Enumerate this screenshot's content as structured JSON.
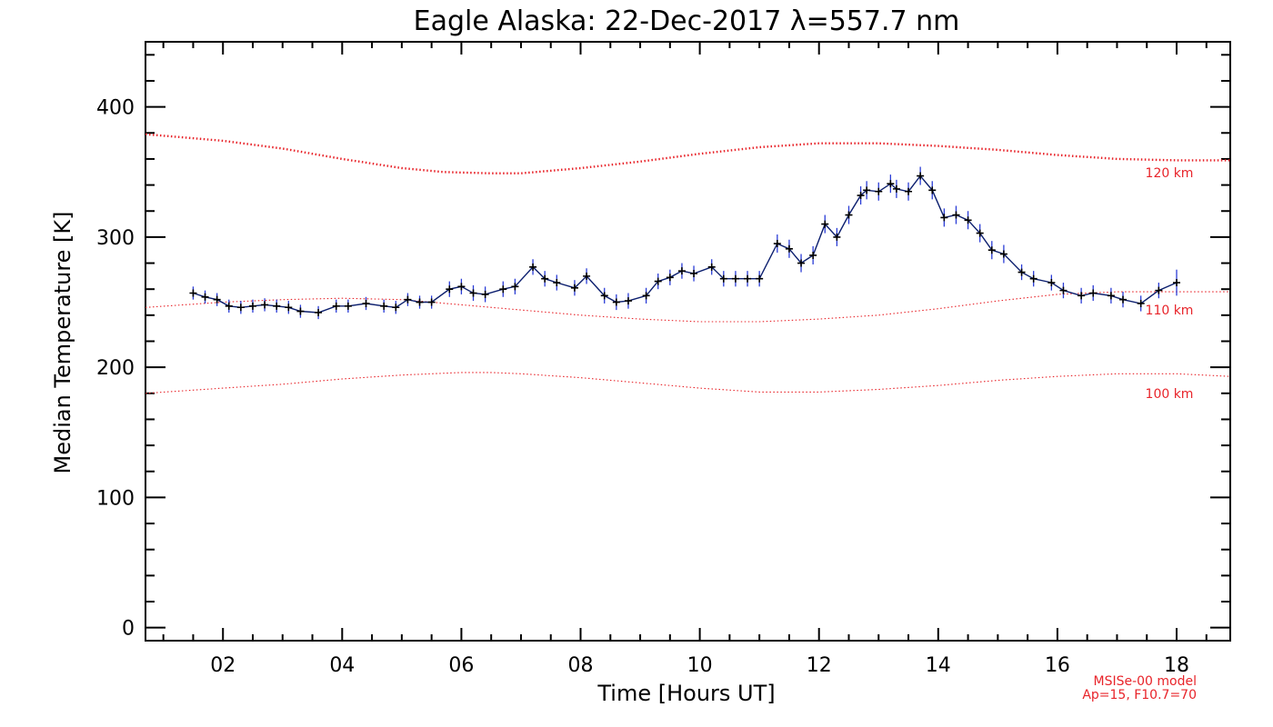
{
  "chart_data": {
    "type": "line",
    "title": "Eagle Alaska: 22-Dec-2017 λ=557.7 nm",
    "xlabel": "Time [Hours UT]",
    "ylabel": "Median Temperature [K]",
    "xlim": [
      0.7,
      18.9
    ],
    "ylim": [
      -10,
      450
    ],
    "xticks": [
      2,
      4,
      6,
      8,
      10,
      12,
      14,
      16,
      18
    ],
    "xtick_labels": [
      "02",
      "04",
      "06",
      "08",
      "10",
      "12",
      "14",
      "16",
      "18"
    ],
    "yticks": [
      0,
      100,
      200,
      300,
      400
    ],
    "ytick_labels": [
      "0",
      "100",
      "200",
      "300",
      "400"
    ],
    "grid": false,
    "model_note": [
      "MSISe-00 model",
      "Ap=15, F10.7=70"
    ],
    "series": [
      {
        "kind": "measured",
        "color": "#0b1e6e",
        "x": [
          1.5,
          1.7,
          1.9,
          2.1,
          2.3,
          2.5,
          2.7,
          2.9,
          3.1,
          3.3,
          3.6,
          3.9,
          4.1,
          4.4,
          4.7,
          4.9,
          5.1,
          5.3,
          5.5,
          5.8,
          6.0,
          6.2,
          6.4,
          6.7,
          6.9,
          7.2,
          7.4,
          7.6,
          7.9,
          8.1,
          8.4,
          8.6,
          8.8,
          9.1,
          9.3,
          9.5,
          9.7,
          9.9,
          10.2,
          10.4,
          10.6,
          10.8,
          11.0,
          11.3,
          11.5,
          11.7,
          11.9,
          12.1,
          12.3,
          12.5,
          12.7,
          12.8,
          13.0,
          13.2,
          13.3,
          13.5,
          13.7,
          13.9,
          14.1,
          14.3,
          14.5,
          14.7,
          14.9,
          15.1,
          15.4,
          15.6,
          15.9,
          16.1,
          16.4,
          16.6,
          16.9,
          17.1,
          17.4,
          17.7,
          18.0
        ],
        "y": [
          257,
          254,
          252,
          247,
          246,
          247,
          248,
          247,
          246,
          243,
          242,
          247,
          247,
          249,
          247,
          246,
          252,
          250,
          250,
          260,
          262,
          257,
          256,
          260,
          262,
          277,
          268,
          265,
          261,
          270,
          255,
          250,
          251,
          255,
          266,
          269,
          274,
          272,
          277,
          268,
          268,
          268,
          268,
          295,
          291,
          280,
          286,
          310,
          300,
          317,
          332,
          336,
          335,
          341,
          337,
          335,
          347,
          336,
          315,
          317,
          313,
          303,
          290,
          287,
          273,
          268,
          265,
          259,
          255,
          257,
          255,
          252,
          249,
          259,
          265
        ],
        "error": [
          5,
          5,
          5,
          5,
          5,
          5,
          5,
          5,
          5,
          5,
          5,
          5,
          5,
          5,
          5,
          5,
          5,
          5,
          5,
          6,
          6,
          6,
          6,
          6,
          6,
          6,
          6,
          6,
          6,
          6,
          6,
          6,
          6,
          6,
          6,
          6,
          6,
          6,
          6,
          6,
          6,
          6,
          6,
          7,
          7,
          7,
          7,
          7,
          7,
          7,
          7,
          7,
          7,
          7,
          7,
          7,
          7,
          7,
          7,
          7,
          7,
          7,
          7,
          7,
          6,
          6,
          6,
          6,
          6,
          6,
          6,
          6,
          6,
          6,
          10
        ]
      },
      {
        "kind": "model",
        "name": "120 km",
        "color": "#e8242a",
        "x": [
          0.7,
          2.0,
          3.0,
          4.0,
          5.0,
          5.7,
          6.5,
          7.0,
          8.0,
          9.0,
          10.0,
          11.0,
          12.0,
          13.0,
          14.0,
          15.0,
          16.0,
          17.0,
          18.0,
          18.9
        ],
        "y": [
          379,
          374,
          368,
          360,
          353,
          350,
          349,
          349,
          353,
          358,
          364,
          369,
          372,
          372,
          370,
          367,
          363,
          360,
          359,
          359
        ]
      },
      {
        "kind": "model",
        "name": "110 km",
        "color": "#e8242a",
        "x": [
          0.7,
          2.0,
          3.0,
          4.0,
          5.0,
          6.0,
          7.0,
          8.0,
          9.0,
          10.0,
          11.0,
          12.0,
          13.0,
          14.0,
          15.0,
          16.0,
          17.0,
          18.0,
          18.9
        ],
        "y": [
          246,
          250,
          252,
          253,
          252,
          248,
          244,
          240,
          237,
          235,
          235,
          237,
          240,
          245,
          251,
          256,
          258,
          258,
          258
        ]
      },
      {
        "kind": "model",
        "name": "100 km",
        "color": "#e8242a",
        "x": [
          0.7,
          2.0,
          3.0,
          4.0,
          5.0,
          6.0,
          6.5,
          7.0,
          8.0,
          9.0,
          10.0,
          11.0,
          12.0,
          13.0,
          14.0,
          15.0,
          16.0,
          17.0,
          18.0,
          18.9
        ],
        "y": [
          180,
          184,
          187,
          191,
          194,
          196,
          196,
          195,
          192,
          188,
          184,
          181,
          181,
          183,
          186,
          190,
          193,
          195,
          195,
          193
        ]
      }
    ]
  }
}
